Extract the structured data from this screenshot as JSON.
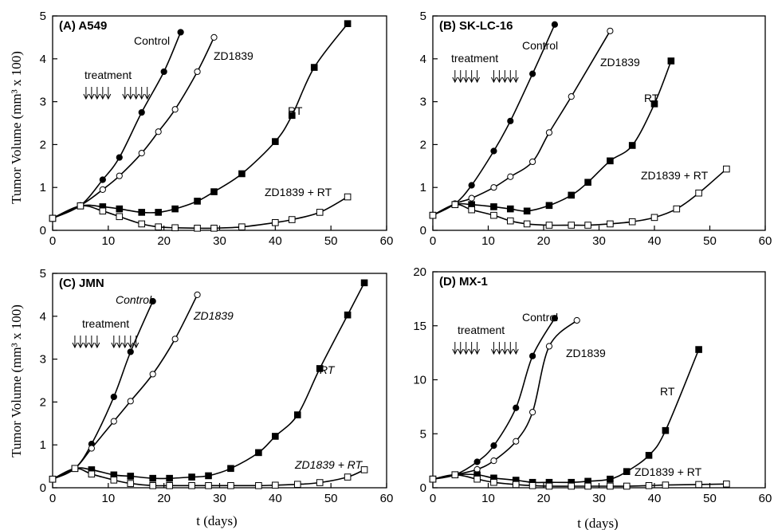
{
  "figure": {
    "ylabel": "Tumor Volume (mm³ x 100)",
    "xlabel": "t (days)",
    "treatment_label": "treatment"
  },
  "chart_data": [
    {
      "type": "line",
      "title": "(A) A549",
      "xlim": [
        0,
        60
      ],
      "ylim": [
        0,
        5
      ],
      "xticks": [
        0,
        10,
        20,
        30,
        40,
        50,
        60
      ],
      "yticks": [
        0,
        1,
        2,
        3,
        4,
        5
      ],
      "treatment_arrows": [
        6,
        7,
        8,
        9,
        10,
        13,
        14,
        15,
        16,
        17
      ],
      "series": [
        {
          "name": "Control",
          "marker": "filled-circle",
          "x": [
            0,
            5,
            9,
            12,
            16,
            20,
            23
          ],
          "y": [
            0.28,
            0.58,
            1.18,
            1.7,
            2.75,
            3.7,
            4.62
          ]
        },
        {
          "name": "ZD1839",
          "marker": "open-circle",
          "x": [
            0,
            5,
            9,
            12,
            16,
            19,
            22,
            26,
            29
          ],
          "y": [
            0.28,
            0.58,
            0.95,
            1.27,
            1.8,
            2.3,
            2.82,
            3.7,
            4.5
          ]
        },
        {
          "name": "RT",
          "marker": "filled-square",
          "x": [
            0,
            5,
            9,
            12,
            16,
            19,
            22,
            26,
            29,
            34,
            40,
            43,
            47,
            53
          ],
          "y": [
            0.28,
            0.57,
            0.55,
            0.5,
            0.42,
            0.42,
            0.5,
            0.68,
            0.9,
            1.32,
            2.07,
            2.68,
            3.8,
            4.82
          ]
        },
        {
          "name": "ZD1839 + RT",
          "marker": "open-square",
          "x": [
            0,
            5,
            9,
            12,
            16,
            19,
            22,
            26,
            29,
            34,
            40,
            43,
            48,
            53
          ],
          "y": [
            0.28,
            0.57,
            0.45,
            0.32,
            0.15,
            0.08,
            0.06,
            0.05,
            0.05,
            0.08,
            0.18,
            0.25,
            0.42,
            0.78
          ]
        }
      ]
    },
    {
      "type": "line",
      "title": "(B) SK-LC-16",
      "xlim": [
        0,
        60
      ],
      "ylim": [
        0,
        5
      ],
      "xticks": [
        0,
        10,
        20,
        30,
        40,
        50,
        60
      ],
      "yticks": [
        0,
        1,
        2,
        3,
        4,
        5
      ],
      "treatment_arrows": [
        4,
        5,
        6,
        7,
        8,
        11,
        12,
        13,
        14,
        15
      ],
      "series": [
        {
          "name": "Control",
          "marker": "filled-circle",
          "x": [
            0,
            4,
            7,
            11,
            14,
            18,
            22
          ],
          "y": [
            0.35,
            0.62,
            1.05,
            1.85,
            2.55,
            3.65,
            4.8
          ]
        },
        {
          "name": "ZD1839",
          "marker": "open-circle",
          "x": [
            0,
            4,
            7,
            11,
            14,
            18,
            21,
            25,
            32
          ],
          "y": [
            0.35,
            0.62,
            0.75,
            1.0,
            1.25,
            1.6,
            2.28,
            3.12,
            4.65
          ]
        },
        {
          "name": "RT",
          "marker": "filled-square",
          "x": [
            0,
            4,
            7,
            11,
            14,
            17,
            21,
            25,
            28,
            32,
            36,
            40,
            43
          ],
          "y": [
            0.35,
            0.6,
            0.6,
            0.55,
            0.5,
            0.45,
            0.58,
            0.82,
            1.12,
            1.62,
            1.98,
            2.95,
            3.95
          ]
        },
        {
          "name": "ZD1839 + RT",
          "marker": "open-square",
          "x": [
            0,
            4,
            7,
            11,
            14,
            17,
            21,
            25,
            28,
            32,
            36,
            40,
            44,
            48,
            53
          ],
          "y": [
            0.35,
            0.6,
            0.48,
            0.35,
            0.22,
            0.15,
            0.12,
            0.12,
            0.12,
            0.15,
            0.2,
            0.3,
            0.5,
            0.87,
            1.43
          ]
        }
      ]
    },
    {
      "type": "line",
      "title": "(C) JMN",
      "xlim": [
        0,
        60
      ],
      "ylim": [
        0,
        5
      ],
      "xticks": [
        0,
        10,
        20,
        30,
        40,
        50,
        60
      ],
      "yticks": [
        0,
        1,
        2,
        3,
        4,
        5
      ],
      "treatment_arrows": [
        4,
        5,
        6,
        7,
        8,
        11,
        12,
        13,
        14,
        15
      ],
      "series": [
        {
          "name": "Control",
          "marker": "filled-circle",
          "x": [
            0,
            4,
            7,
            11,
            14,
            18
          ],
          "y": [
            0.2,
            0.45,
            1.02,
            2.12,
            3.17,
            4.35
          ]
        },
        {
          "name": "ZD1839",
          "marker": "open-circle",
          "x": [
            0,
            4,
            7,
            11,
            14,
            18,
            22,
            26
          ],
          "y": [
            0.2,
            0.45,
            0.92,
            1.55,
            2.02,
            2.65,
            3.47,
            4.5
          ]
        },
        {
          "name": "RT",
          "marker": "filled-square",
          "x": [
            0,
            4,
            7,
            11,
            14,
            18,
            21,
            25,
            28,
            32,
            37,
            40,
            44,
            48,
            53,
            56
          ],
          "y": [
            0.2,
            0.45,
            0.42,
            0.3,
            0.27,
            0.22,
            0.22,
            0.25,
            0.28,
            0.45,
            0.82,
            1.2,
            1.7,
            2.78,
            4.03,
            4.78
          ]
        },
        {
          "name": "ZD1839 + RT",
          "marker": "open-square",
          "x": [
            0,
            4,
            7,
            11,
            14,
            18,
            21,
            25,
            28,
            32,
            37,
            40,
            44,
            48,
            53,
            56
          ],
          "y": [
            0.2,
            0.45,
            0.32,
            0.18,
            0.1,
            0.05,
            0.05,
            0.05,
            0.05,
            0.05,
            0.05,
            0.06,
            0.08,
            0.12,
            0.25,
            0.42
          ]
        }
      ]
    },
    {
      "type": "line",
      "title": "(D) MX-1",
      "xlim": [
        0,
        60
      ],
      "ylim": [
        0,
        20
      ],
      "xticks": [
        0,
        10,
        20,
        30,
        40,
        50,
        60
      ],
      "yticks": [
        0,
        5,
        10,
        15,
        20
      ],
      "treatment_arrows": [
        4,
        5,
        6,
        7,
        8,
        11,
        12,
        13,
        14,
        15
      ],
      "series": [
        {
          "name": "Control",
          "marker": "filled-circle",
          "x": [
            0,
            4,
            8,
            11,
            15,
            18,
            22
          ],
          "y": [
            0.8,
            1.2,
            2.4,
            3.9,
            7.4,
            12.2,
            15.7
          ]
        },
        {
          "name": "ZD1839",
          "marker": "open-circle",
          "x": [
            0,
            4,
            8,
            11,
            15,
            18,
            21,
            26
          ],
          "y": [
            0.8,
            1.2,
            1.7,
            2.5,
            4.3,
            7.0,
            13.1,
            15.5
          ]
        },
        {
          "name": "RT",
          "marker": "filled-square",
          "x": [
            0,
            4,
            8,
            11,
            15,
            18,
            21,
            25,
            28,
            32,
            35,
            39,
            42,
            48
          ],
          "y": [
            0.8,
            1.2,
            1.2,
            0.9,
            0.7,
            0.5,
            0.5,
            0.5,
            0.6,
            0.8,
            1.5,
            3.0,
            5.3,
            12.8
          ]
        },
        {
          "name": "ZD1839 + RT",
          "marker": "open-square",
          "x": [
            0,
            4,
            8,
            11,
            15,
            18,
            21,
            25,
            28,
            32,
            35,
            39,
            42,
            48,
            53
          ],
          "y": [
            0.8,
            1.2,
            0.8,
            0.5,
            0.3,
            0.2,
            0.15,
            0.15,
            0.15,
            0.15,
            0.15,
            0.2,
            0.25,
            0.3,
            0.35
          ]
        }
      ]
    }
  ]
}
